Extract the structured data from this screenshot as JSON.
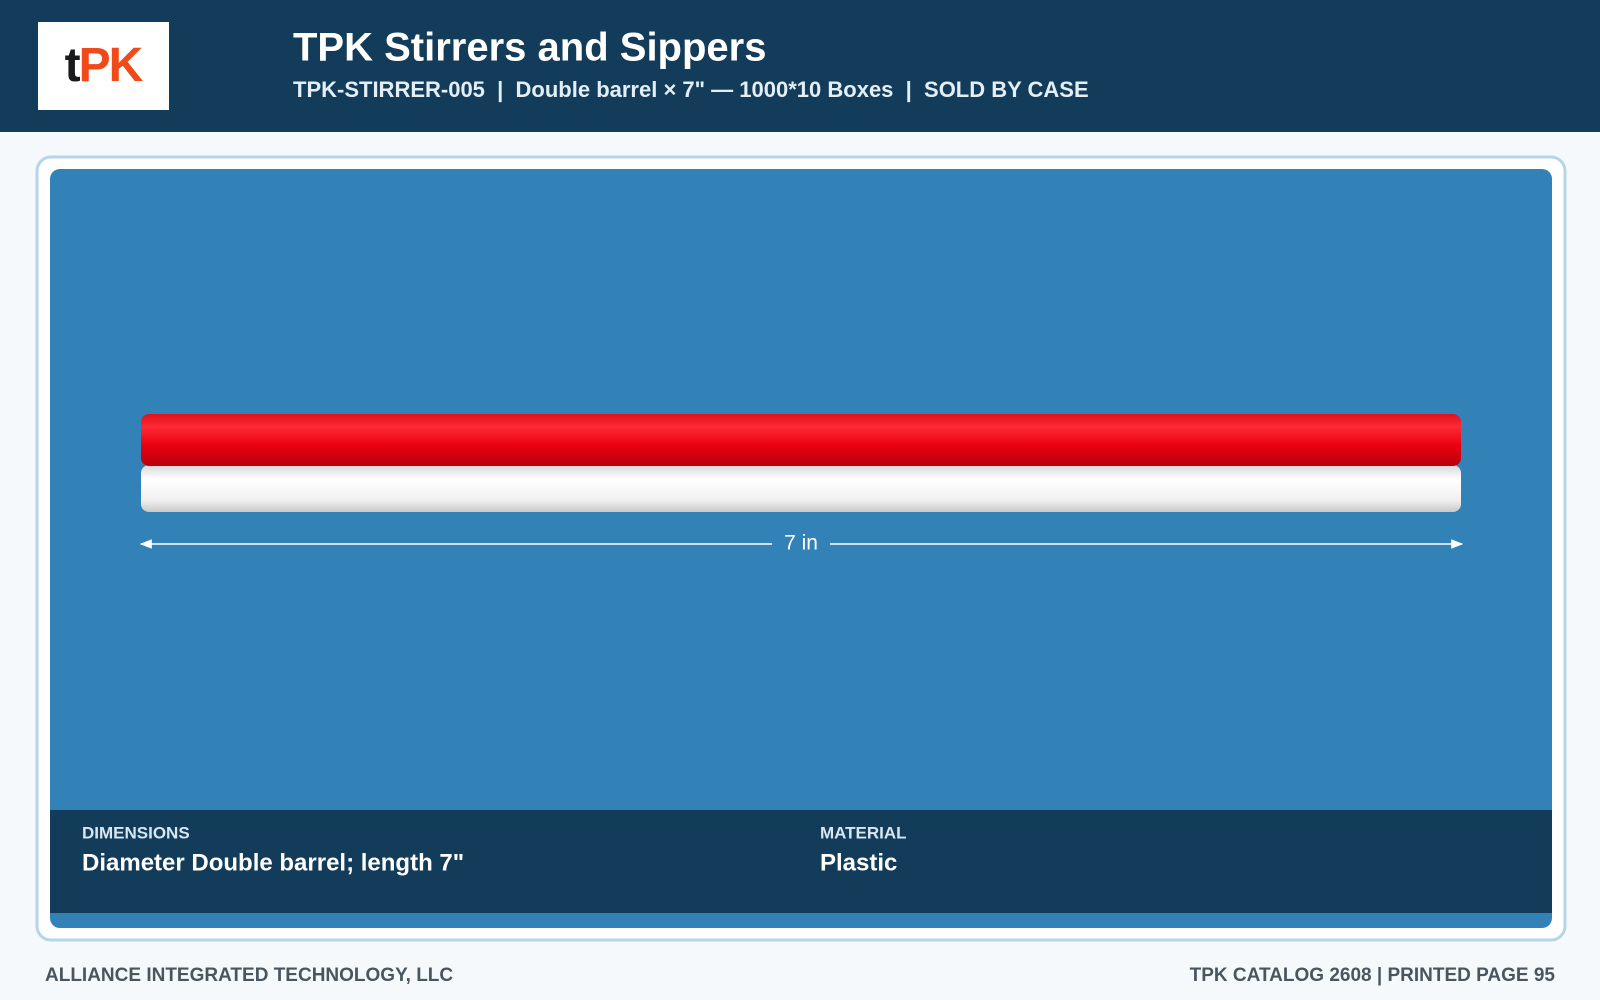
{
  "header": {
    "logo": {
      "prefix": "t",
      "main": "PK"
    },
    "title": "TPK Stirrers and Sippers",
    "subtitle": "TPK-STIRRER-005  |  Double barrel × 7\" — 1000*10 Boxes  |  SOLD BY CASE"
  },
  "product": {
    "dimension_label": "7 in"
  },
  "specs": [
    {
      "label": "DIMENSIONS",
      "value": "Diameter Double barrel; length 7\""
    },
    {
      "label": "MATERIAL",
      "value": "Plastic"
    }
  ],
  "footer": {
    "left": "ALLIANCE INTEGRATED TECHNOLOGY, LLC",
    "right": "TPK CATALOG 2608 | PRINTED PAGE 95"
  }
}
